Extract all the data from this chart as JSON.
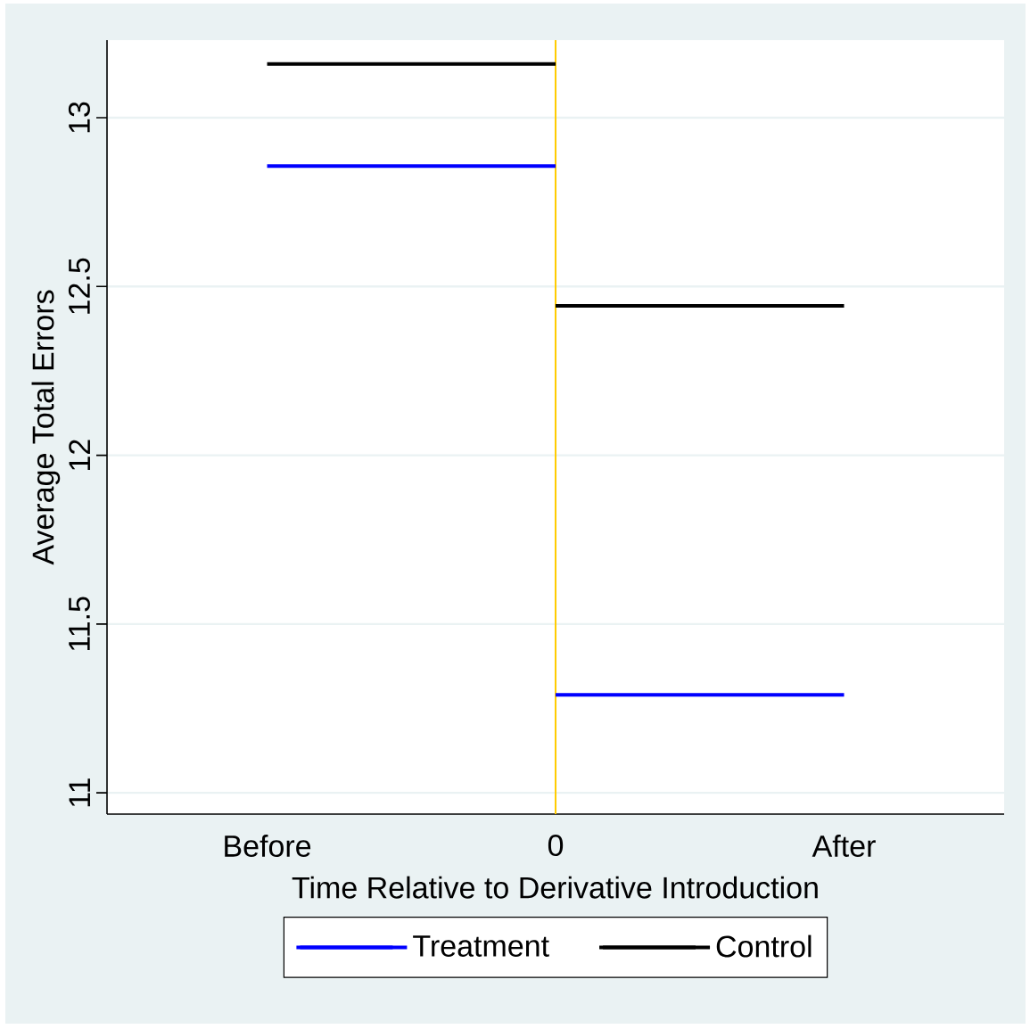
{
  "chart_data": {
    "type": "step",
    "xlabel": "Time Relative to Derivative Introduction",
    "ylabel": "Average Total Errors",
    "categories": [
      "Before",
      "0",
      "After"
    ],
    "ylim": [
      10.937,
      13.23
    ],
    "yticks": [
      11,
      11.5,
      12,
      12.5,
      13
    ],
    "grid": "y",
    "legend": "bottom",
    "line_style": "solid",
    "ref_lines": [
      {
        "axis": "x",
        "value": "0",
        "color": "#ffcc00"
      }
    ],
    "series": [
      {
        "name": "Treatment",
        "color": "#0000ff",
        "values": [
          12.857,
          11.29,
          11.29
        ]
      },
      {
        "name": "Control",
        "color": "#000000",
        "values": [
          13.159,
          12.443,
          12.443
        ]
      }
    ]
  }
}
